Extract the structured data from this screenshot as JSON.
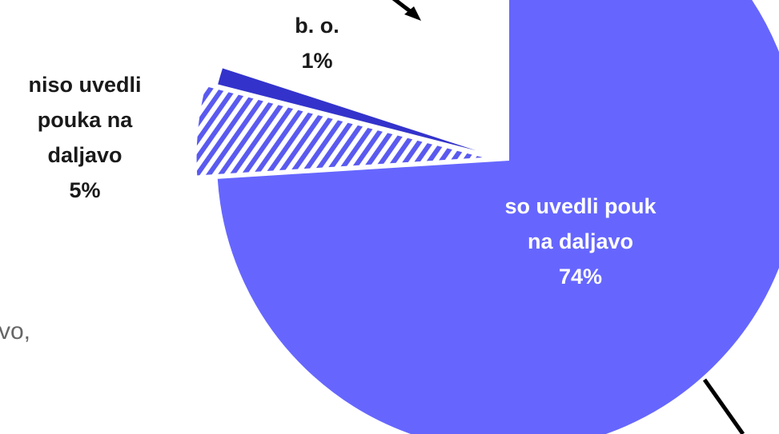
{
  "chart_data": {
    "type": "pie",
    "title": "",
    "slices": [
      {
        "label_lines": [
          "so uvedli pouk",
          "na daljavo"
        ],
        "value": 74,
        "value_text": "74%",
        "color": "#6666ff",
        "pattern": "solid"
      },
      {
        "label_lines": [
          "niso uvedli",
          "pouka na",
          "daljavo"
        ],
        "value": 5,
        "value_text": "5%",
        "color": "#5a5af0",
        "pattern": "diagonal-stripes"
      },
      {
        "label_lines": [
          "b. o."
        ],
        "value": 1,
        "value_text": "1%",
        "color": "#3333cc",
        "pattern": "solid"
      }
    ],
    "label_placement": "inside for largest slice, outside for others"
  },
  "background_text": "vo,"
}
